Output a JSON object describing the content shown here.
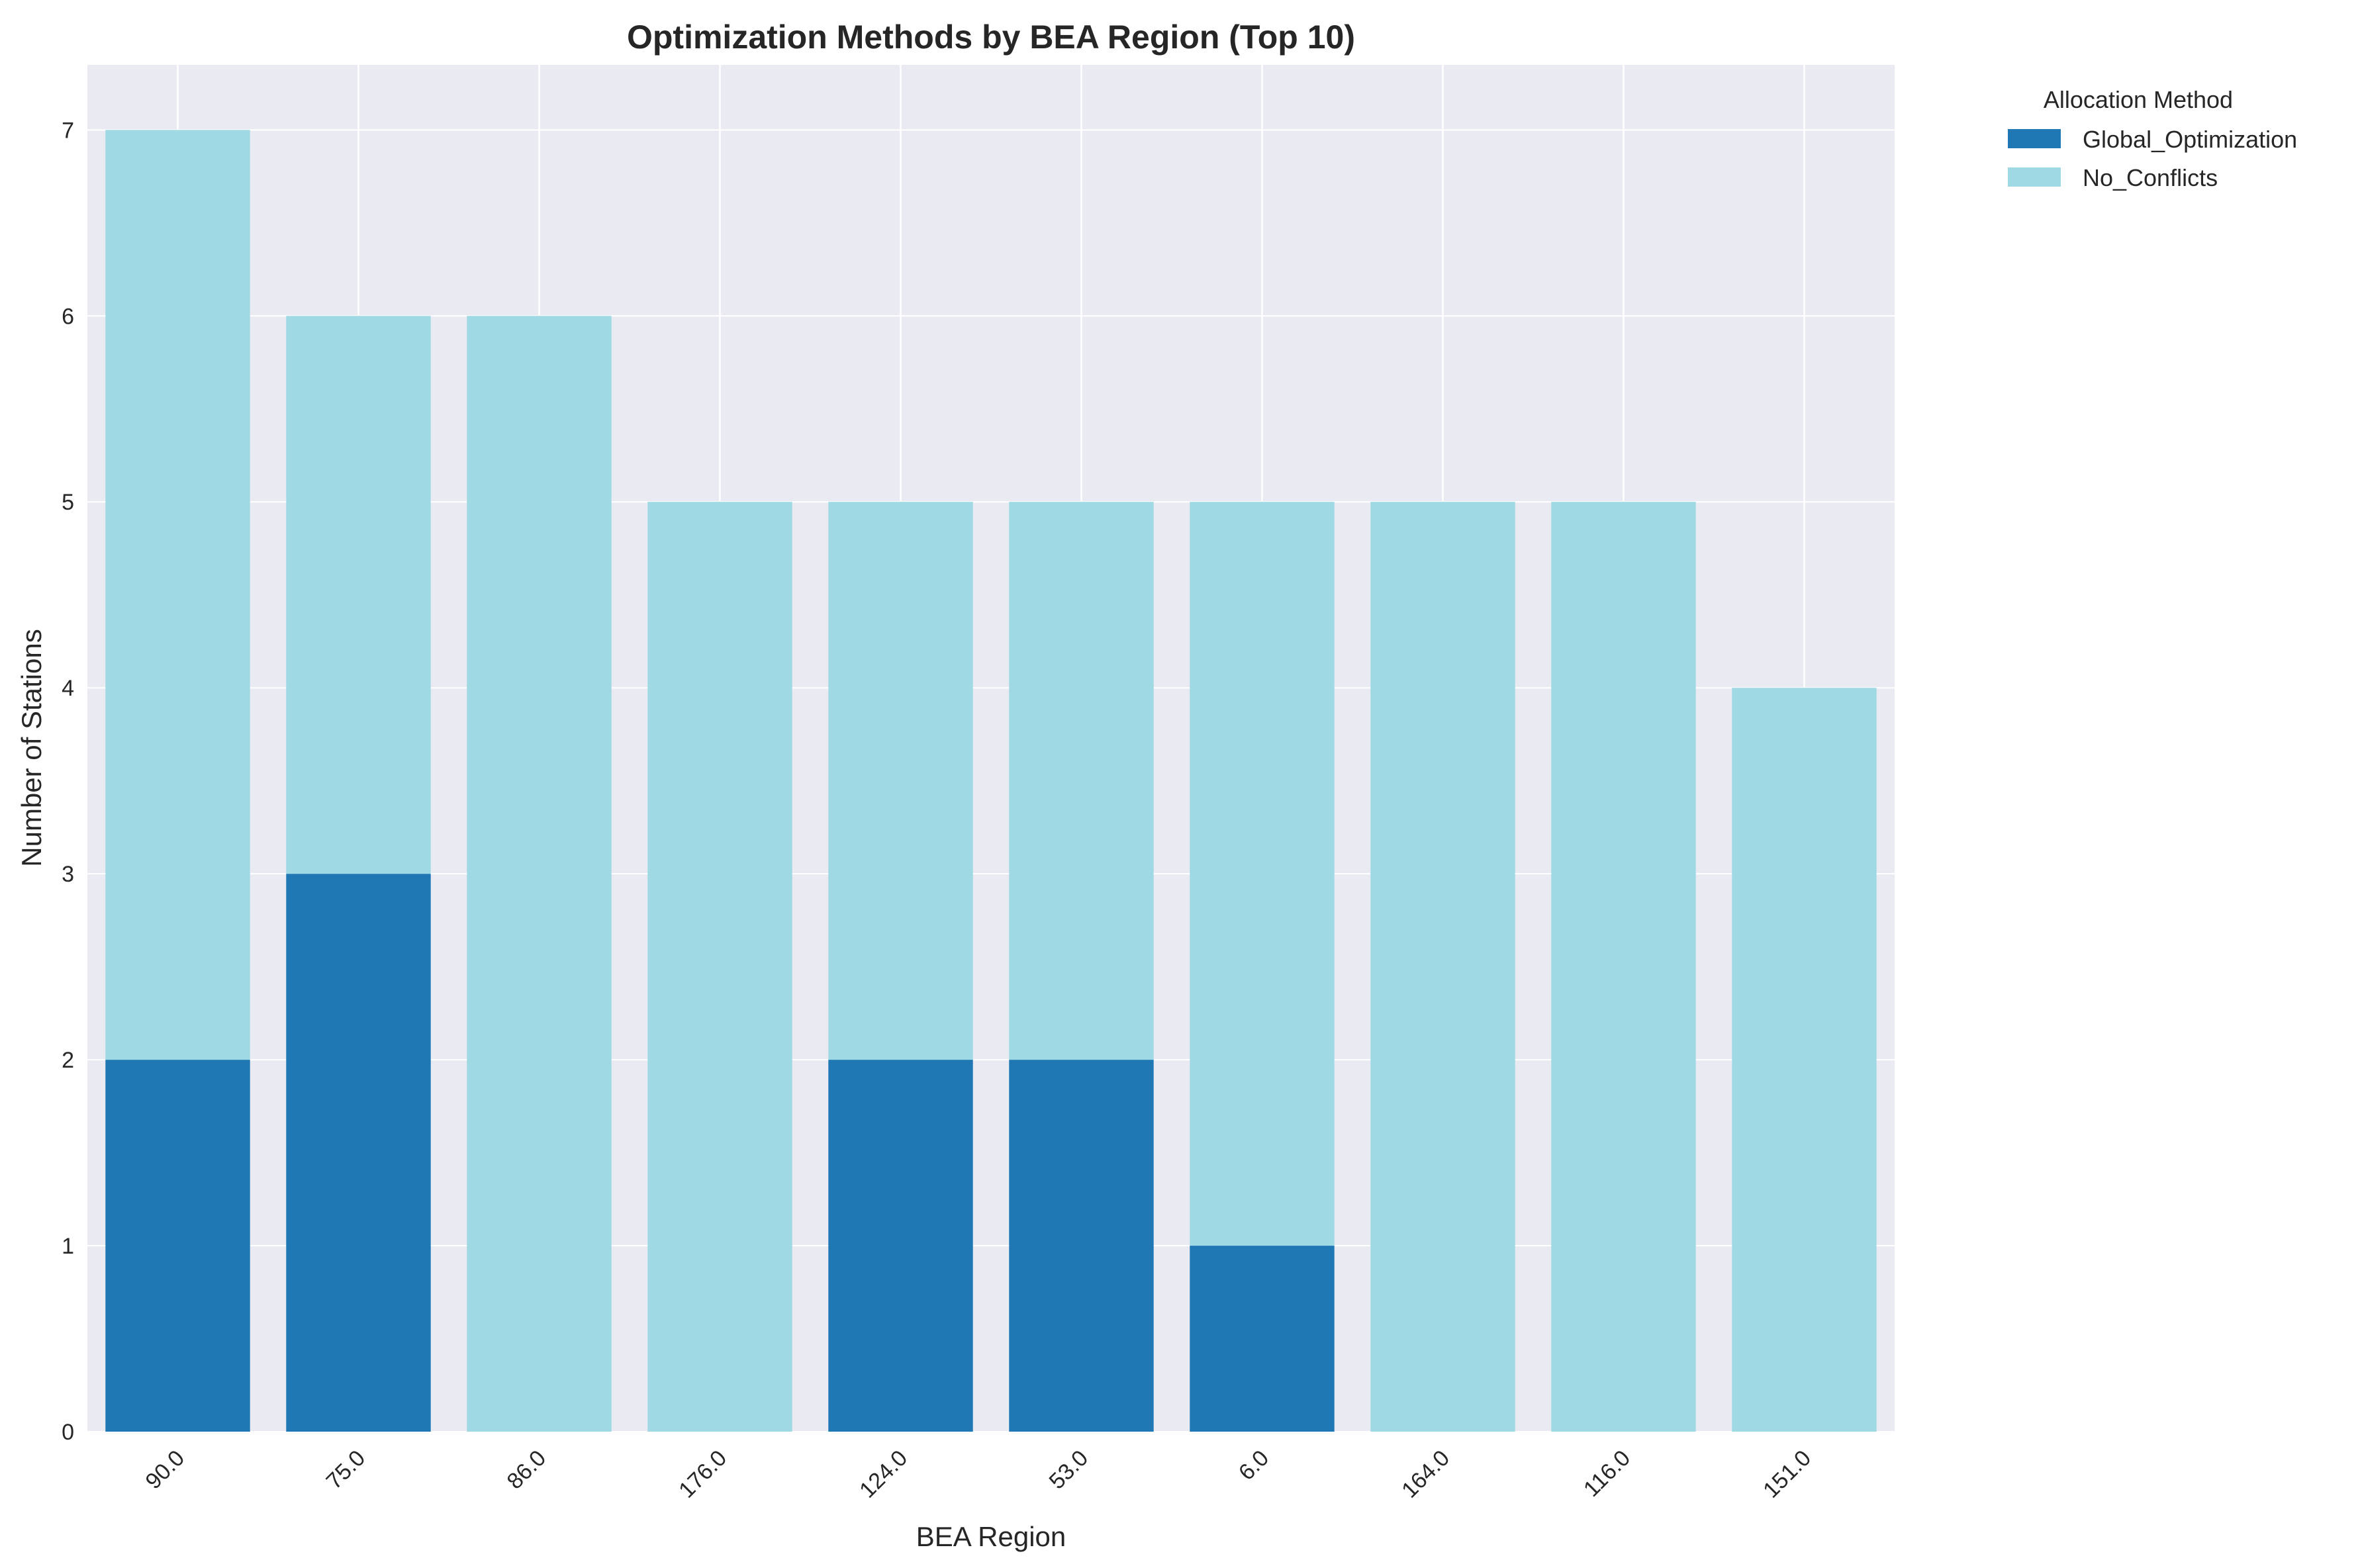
{
  "chart_data": {
    "type": "bar",
    "stacked": true,
    "title": "Optimization Methods by BEA Region (Top 10)",
    "xlabel": "BEA Region",
    "ylabel": "Number of Stations",
    "categories": [
      "90.0",
      "75.0",
      "86.0",
      "176.0",
      "124.0",
      "53.0",
      "6.0",
      "164.0",
      "116.0",
      "151.0"
    ],
    "series": [
      {
        "name": "Global_Optimization",
        "color": "#1f77b4",
        "values": [
          2,
          3,
          0,
          0,
          2,
          2,
          1,
          0,
          0,
          0
        ]
      },
      {
        "name": "No_Conflicts",
        "color": "#9fd9e4",
        "values": [
          5,
          3,
          6,
          5,
          3,
          3,
          4,
          5,
          5,
          4
        ]
      }
    ],
    "ylim": [
      0,
      7.35
    ],
    "yticks": [
      0,
      1,
      2,
      3,
      4,
      5,
      6,
      7
    ],
    "grid": true,
    "legend": {
      "title": "Allocation Method",
      "placement": "outside-top-right"
    },
    "plot_background": "#eaeaf2",
    "grid_color": "#ffffff"
  }
}
